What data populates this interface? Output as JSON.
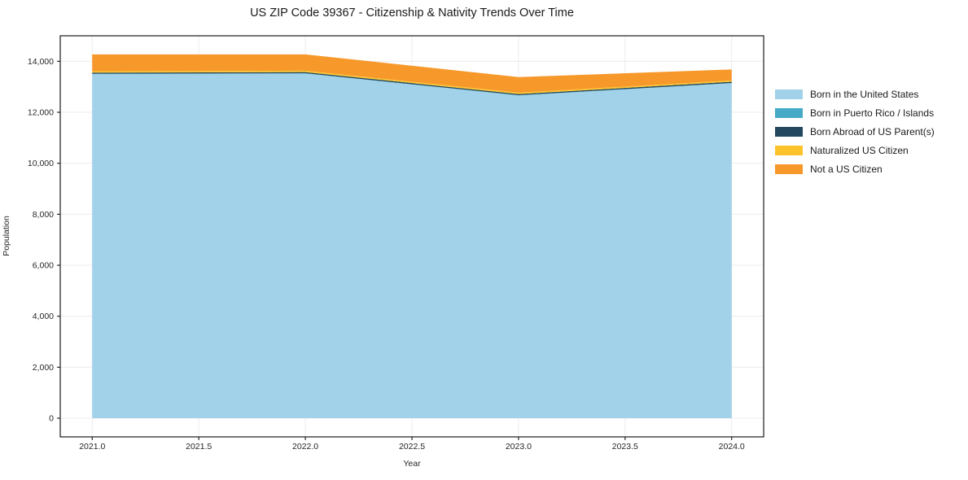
{
  "chart_data": {
    "type": "area",
    "stacked": true,
    "title": "US ZIP Code 39367 - Citizenship & Nativity Trends Over Time",
    "xlabel": "Year",
    "ylabel": "Population",
    "x": [
      2021,
      2022,
      2023,
      2024
    ],
    "series": [
      {
        "name": "Born in the United States",
        "color": "#a1d2e9",
        "values": [
          13500,
          13520,
          12660,
          13140
        ]
      },
      {
        "name": "Born in Puerto Rico / Islands",
        "color": "#46a9c6",
        "values": [
          10,
          10,
          10,
          10
        ]
      },
      {
        "name": "Born Abroad of US Parent(s)",
        "color": "#24485e",
        "values": [
          45,
          45,
          45,
          45
        ]
      },
      {
        "name": "Naturalized US Citizen",
        "color": "#fcc32b",
        "values": [
          55,
          55,
          55,
          55
        ]
      },
      {
        "name": "Not a US Citizen",
        "color": "#f7982a",
        "values": [
          660,
          640,
          610,
          430
        ]
      }
    ],
    "xlim": [
      2020.85,
      2024.15
    ],
    "ylim": [
      -733,
      15000
    ],
    "x_ticks": {
      "values": [
        2021.0,
        2021.5,
        2022.0,
        2022.5,
        2023.0,
        2023.5,
        2024.0
      ],
      "labels": [
        "2021.0",
        "2021.5",
        "2022.0",
        "2022.5",
        "2023.0",
        "2023.5",
        "2024.0"
      ]
    },
    "y_ticks": {
      "values": [
        0,
        2000,
        4000,
        6000,
        8000,
        10000,
        12000,
        14000
      ],
      "labels": [
        "0",
        "2,000",
        "4,000",
        "6,000",
        "8,000",
        "10,000",
        "12,000",
        "14,000"
      ]
    },
    "grid": true,
    "legend_position": "right-outside",
    "axis_colors": {
      "spine": "#1a1a1a",
      "grid": "#ececec",
      "tick_text": "#262626"
    }
  }
}
